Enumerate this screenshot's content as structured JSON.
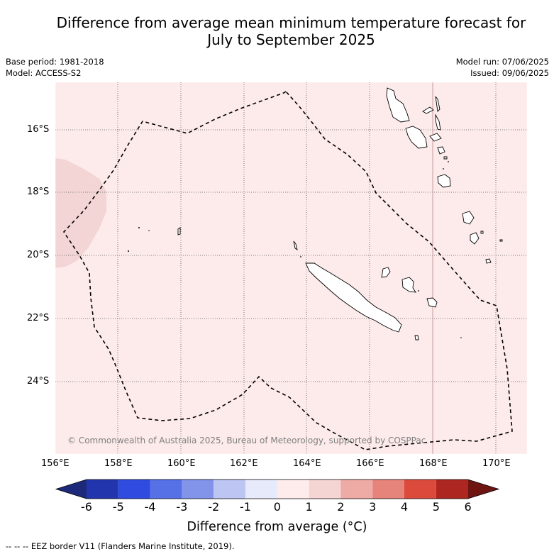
{
  "title_line1": "Difference from average mean minimum temperature forecast for",
  "title_line2": "July to September 2025",
  "base_period": "Base period: 1981-2018",
  "model": "Model: ACCESS-S2",
  "model_run": "Model run: 07/06/2025",
  "issued": "Issued: 09/06/2025",
  "copyright": "© Commonwealth of Australia 2025, Bureau of Meteorology, supported by COSPPac",
  "footnote": "--  --  -- EEZ border V11 (Flanders Marine Institute, 2019).",
  "lat_labels": [
    "16°S",
    "18°S",
    "20°S",
    "22°S",
    "24°S"
  ],
  "lon_labels": [
    "156°E",
    "158°E",
    "160°E",
    "162°E",
    "164°E",
    "166°E",
    "168°E",
    "170°E"
  ],
  "colorbar": {
    "title": "Difference from average (°C)",
    "ticks": [
      "-6",
      "-5",
      "-4",
      "-3",
      "-2",
      "-1",
      "0",
      "1",
      "2",
      "3",
      "4",
      "5",
      "6"
    ],
    "colors": [
      "#1d2a7a",
      "#2335ad",
      "#2f4be0",
      "#5670e6",
      "#8294ea",
      "#bdc5f2",
      "#e7eafb",
      "#fdeceb",
      "#f4d5d3",
      "#eeaaa5",
      "#e6847c",
      "#dc4a3c",
      "#ae2620",
      "#6e1512"
    ]
  },
  "colors": {
    "map_background": "#fcebea",
    "warm_patch": "#f2d5d4",
    "grid": "#555555",
    "eez": "#000000"
  }
}
